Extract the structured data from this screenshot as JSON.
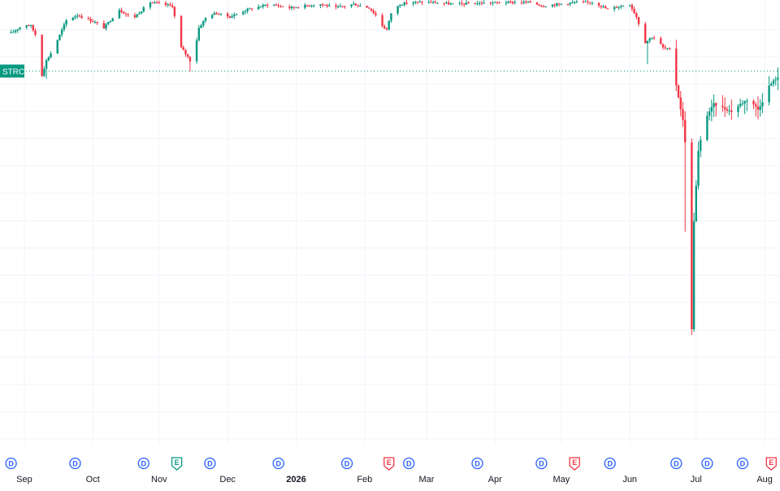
{
  "chart_data": {
    "type": "candlestick",
    "ticker": "STRC",
    "ylim": [
      78,
      101.5
    ],
    "current_price": 98.22,
    "grid": true,
    "colors": {
      "up": "#089981",
      "down": "#f23645",
      "grid": "#f0f3fa",
      "ticker_bg": "#089981",
      "dividend": "#2962ff",
      "earnings_up": "#089981",
      "earnings_down": "#f23645"
    },
    "months": [
      {
        "label": "Sep",
        "day": 6
      },
      {
        "label": "Oct",
        "day": 37
      },
      {
        "label": "Nov",
        "day": 67
      },
      {
        "label": "Dec",
        "day": 98
      },
      {
        "label": "2026",
        "day": 129,
        "bold": true
      },
      {
        "label": "Feb",
        "day": 160
      },
      {
        "label": "Mar",
        "day": 188
      },
      {
        "label": "Apr",
        "day": 219
      },
      {
        "label": "May",
        "day": 249
      },
      {
        "label": "Jun",
        "day": 280
      },
      {
        "label": "Jul",
        "day": 310
      },
      {
        "label": "Aug",
        "day": 341
      }
    ],
    "events": [
      {
        "type": "D",
        "day": 0
      },
      {
        "type": "D",
        "day": 29
      },
      {
        "type": "D",
        "day": 60
      },
      {
        "type": "E",
        "day": 75,
        "tone": "up"
      },
      {
        "type": "D",
        "day": 90
      },
      {
        "type": "D",
        "day": 121
      },
      {
        "type": "D",
        "day": 152
      },
      {
        "type": "E",
        "day": 171,
        "tone": "down"
      },
      {
        "type": "D",
        "day": 180
      },
      {
        "type": "D",
        "day": 211
      },
      {
        "type": "D",
        "day": 240
      },
      {
        "type": "E",
        "day": 255,
        "tone": "down"
      },
      {
        "type": "D",
        "day": 271
      },
      {
        "type": "D",
        "day": 301
      },
      {
        "type": "D",
        "day": 315
      },
      {
        "type": "D",
        "day": 331
      },
      {
        "type": "E",
        "day": 344,
        "tone": "down"
      }
    ],
    "anchors": [
      [
        0,
        100.3
      ],
      [
        6,
        100.8
      ],
      [
        9,
        100.7
      ],
      [
        12,
        100.0
      ],
      [
        14,
        98.0
      ],
      [
        16,
        98.8
      ],
      [
        19,
        99.4
      ],
      [
        22,
        100.2
      ],
      [
        25,
        101.0
      ],
      [
        30,
        101.3
      ],
      [
        38,
        100.9
      ],
      [
        42,
        100.6
      ],
      [
        49,
        101.6
      ],
      [
        55,
        101.1
      ],
      [
        63,
        102.0
      ],
      [
        73,
        101.8
      ],
      [
        77,
        99.5
      ],
      [
        80,
        99.0
      ],
      [
        82,
        98.6
      ],
      [
        85,
        100.6
      ],
      [
        89,
        101.3
      ],
      [
        93,
        101.4
      ],
      [
        99,
        101.2
      ],
      [
        107,
        101.6
      ],
      [
        117,
        101.9
      ],
      [
        126,
        101.7
      ],
      [
        133,
        101.8
      ],
      [
        140,
        101.9
      ],
      [
        147,
        101.7
      ],
      [
        155,
        101.9
      ],
      [
        162,
        101.7
      ],
      [
        165,
        101.3
      ],
      [
        167,
        100.8
      ],
      [
        170,
        100.5
      ],
      [
        172,
        101.4
      ],
      [
        176,
        101.9
      ],
      [
        182,
        102.0
      ],
      [
        190,
        102.0
      ],
      [
        200,
        101.9
      ],
      [
        212,
        101.95
      ],
      [
        226,
        102.0
      ],
      [
        236,
        102.0
      ],
      [
        240,
        101.8
      ],
      [
        248,
        101.9
      ],
      [
        256,
        102.0
      ],
      [
        264,
        102.0
      ],
      [
        270,
        101.6
      ],
      [
        276,
        101.8
      ],
      [
        280,
        101.9
      ],
      [
        283,
        101.2
      ],
      [
        285,
        100.5
      ],
      [
        287,
        99.8
      ],
      [
        290,
        100.1
      ],
      [
        292,
        100.0
      ],
      [
        295,
        99.5
      ],
      [
        298,
        99.4
      ],
      [
        300,
        98.1
      ],
      [
        302,
        96.8
      ],
      [
        304,
        95.5
      ],
      [
        306,
        93.2
      ],
      [
        307,
        81.0
      ],
      [
        308,
        84.0
      ],
      [
        309,
        90.0
      ],
      [
        311,
        93.8
      ],
      [
        314,
        95.6
      ],
      [
        318,
        96.4
      ],
      [
        322,
        96.2
      ],
      [
        326,
        96.0
      ],
      [
        330,
        96.4
      ],
      [
        334,
        96.7
      ],
      [
        338,
        96.1
      ],
      [
        341,
        96.8
      ],
      [
        343,
        97.4
      ],
      [
        346,
        97.8
      ],
      [
        350,
        97.9
      ]
    ],
    "spikes": [
      {
        "day": 16,
        "low": 97.8
      },
      {
        "day": 81,
        "low": 98.2
      },
      {
        "day": 167,
        "low": 98.4
      },
      {
        "day": 288,
        "low": 98.6
      },
      {
        "day": 300,
        "low": 94.3
      },
      {
        "day": 305,
        "low": 89.4
      }
    ]
  }
}
